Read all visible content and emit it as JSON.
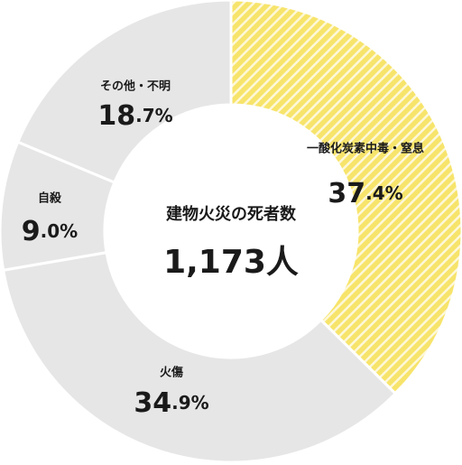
{
  "chart_data": {
    "type": "donut",
    "center_title": "建物火災の死者数",
    "center_value": "1,173人",
    "categories": [
      "一酸化炭素中毒・窒息",
      "火傷",
      "自殺",
      "その他・不明"
    ],
    "values": [
      37.4,
      34.9,
      9.0,
      18.7
    ],
    "value_labels": [
      "37.4%",
      "34.9%",
      "9.0%",
      "18.7%"
    ],
    "colors": [
      "#f7e46b",
      "#e6e6e6",
      "#e6e6e6",
      "#e6e6e6"
    ],
    "hatched": [
      true,
      false,
      false,
      false
    ]
  }
}
